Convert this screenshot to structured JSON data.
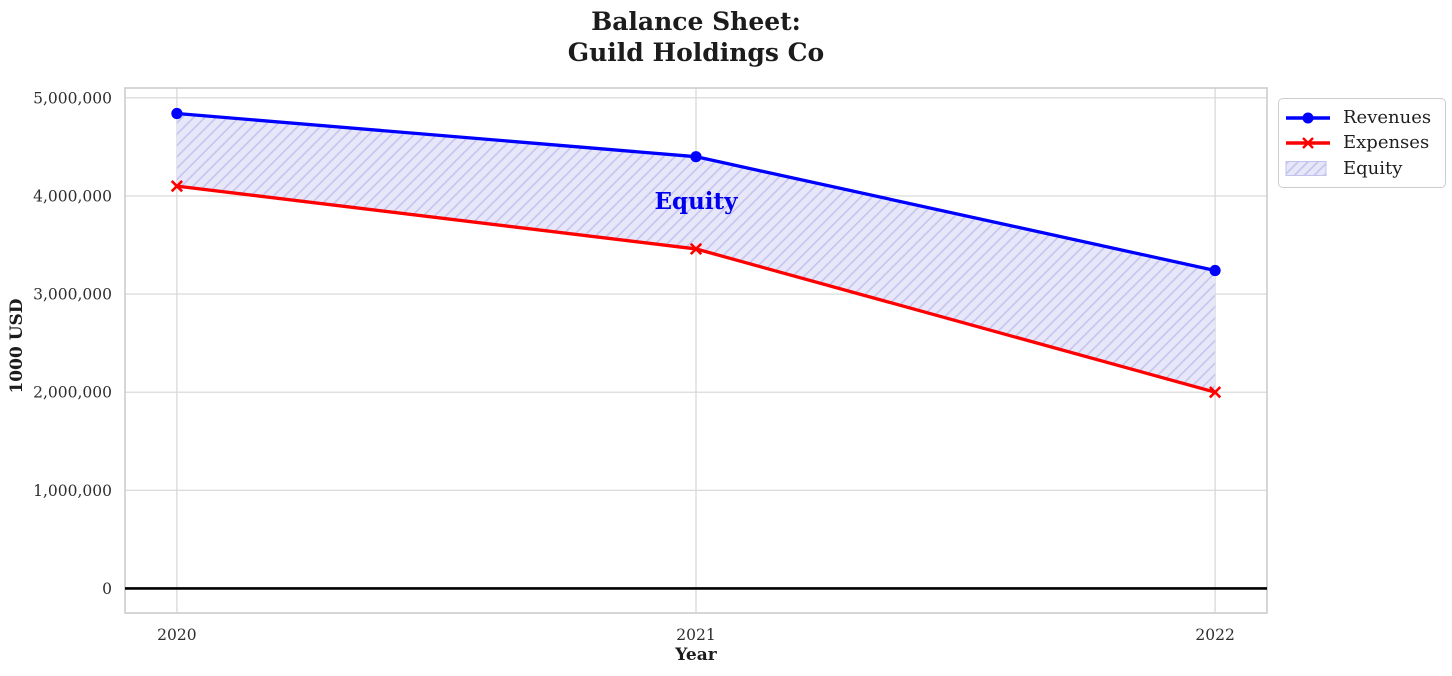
{
  "chart_data": {
    "type": "line",
    "title": "Balance Sheet:\nGuild Holdings Co",
    "xlabel": "Year",
    "ylabel": "1000 USD",
    "x": [
      2020,
      2021,
      2022
    ],
    "xticklabels": [
      "2020",
      "2021",
      "2022"
    ],
    "series": [
      {
        "name": "Revenues",
        "values": [
          4840000,
          4400000,
          3240000
        ],
        "color": "#0000FF",
        "marker": "circle"
      },
      {
        "name": "Expenses",
        "values": [
          4100000,
          3460000,
          2000000
        ],
        "color": "#FF0000",
        "marker": "x"
      }
    ],
    "fill_between": {
      "label": "Equity",
      "upper": "Revenues",
      "lower": "Expenses",
      "facecolor": "#E7E7F9",
      "hatch": "//",
      "hatchcolor": "#C2C2EE"
    },
    "annotation": {
      "text": "Equity",
      "x": 2021,
      "y": 3950000,
      "color": "#0000EE"
    },
    "yticks": [
      0,
      1000000,
      2000000,
      3000000,
      4000000,
      5000000
    ],
    "yticklabels": [
      "0",
      "1,000,000",
      "2,000,000",
      "3,000,000",
      "4,000,000",
      "5,000,000"
    ],
    "xlim": [
      2019.9,
      2022.1
    ],
    "ylim": [
      -250000,
      5100000
    ],
    "grid": true,
    "grid_color": "#D6D6D6",
    "spine_color": "#CCCCCC",
    "zero_line": true,
    "zero_line_color": "#000000",
    "legend": {
      "position": "outside-upper-right",
      "items": [
        {
          "label": "Revenues"
        },
        {
          "label": "Expenses"
        },
        {
          "label": "Equity"
        }
      ]
    }
  }
}
